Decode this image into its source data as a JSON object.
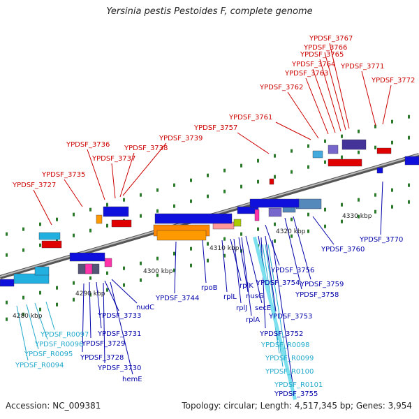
{
  "title": "Yersinia pestis Pestoides F, complete genome",
  "footer": {
    "accession": "Accession: NC_009381",
    "summary": "Topology: circular; Length: 4,517,345 bp; Genes: 3,954"
  },
  "colors": {
    "forward_label": "#cc0000",
    "reverse_label": "#0000aa",
    "rna_label": "#22aacc",
    "backbone": "#888888",
    "tick_mark": "#2a7a2a"
  },
  "scale_labels": [
    "4280 kbp",
    "4290 kbp",
    "4300 kbp",
    "4310 kbp",
    "4320 kbp",
    "4330 kbp"
  ],
  "forward_genes": [
    "YPDSF_3727",
    "YPDSF_3735",
    "YPDSF_3736",
    "YPDSF_3737",
    "YPDSF_3738",
    "YPDSF_3739",
    "YPDSF_3757",
    "YPDSF_3761",
    "YPDSF_3762",
    "YPDSF_3763",
    "YPDSF_3764",
    "YPDSF_3765",
    "YPDSF_3766",
    "YPDSF_3767",
    "YPDSF_3771",
    "YPDSF_3772"
  ],
  "reverse_genes": [
    "nudC",
    "YPDSF_3733",
    "YPDSF_3731",
    "YPDSF_3729",
    "YPDSF_3728",
    "YPDSF_3730",
    "hemE",
    "YPDSF_3744",
    "rpoB",
    "rplL",
    "rplK",
    "rplJ",
    "nusG",
    "rplA",
    "secE",
    "YPDSF_3754",
    "YPDSF_3756",
    "YPDSF_3753",
    "YPDSF_3752",
    "YPDSF_3755",
    "YPDSF_3759",
    "YPDSF_3758",
    "YPDSF_3760",
    "YPDSF_3770"
  ],
  "rna_genes": [
    "YPDSF_R0097",
    "YPDSF_R0096",
    "YPDSF_R0095",
    "YPDSF_R0094",
    "YPDSF_R0098",
    "YPDSF_R0099",
    "YPDSF_R0100",
    "YPDSF_R0101"
  ]
}
